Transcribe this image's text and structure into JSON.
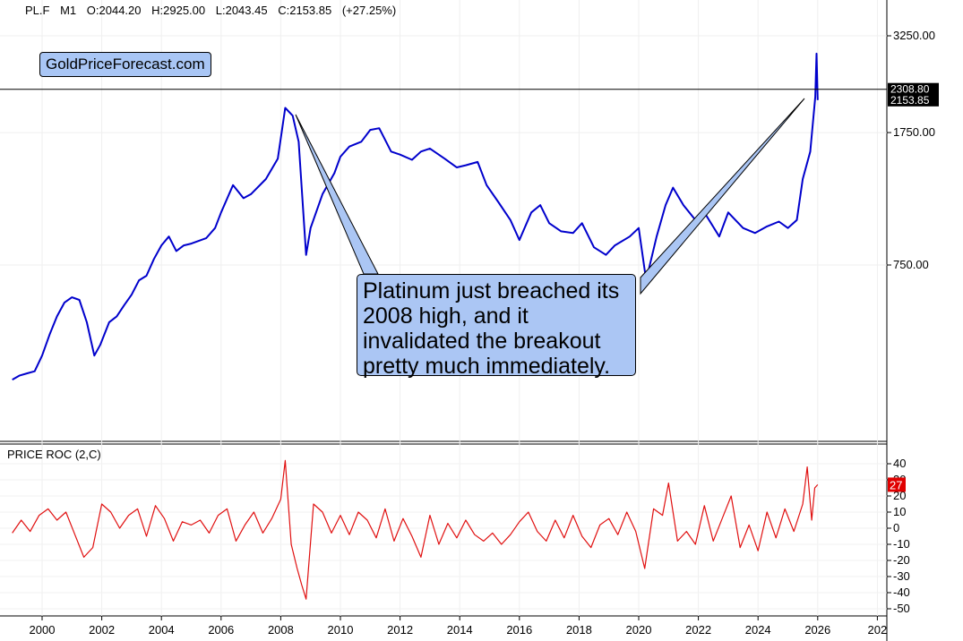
{
  "header": {
    "symbol": "PL.F",
    "timeframe": "M1",
    "open": "O:2044.20",
    "high": "H:2925.00",
    "low": "L:2043.45",
    "close": "C:2153.85",
    "change": "(+27.25%)"
  },
  "brand": "GoldPriceForecast.com",
  "annotation": "Platinum just breached its 2008 high, and it invalidated the breakout pretty much immediately.",
  "colors": {
    "price": "#0000cc",
    "roc": "#e01010",
    "callout": "#abc6f4",
    "badge_roc": "#e00000"
  },
  "chart_data": [
    {
      "type": "line",
      "x_ticks": [
        "2000",
        "2002",
        "2004",
        "2006",
        "2008",
        "2010",
        "2012",
        "2014",
        "2016",
        "2018",
        "2020",
        "2022",
        "2024",
        "2026",
        "202"
      ],
      "y_ticks": [
        "3250.00",
        "1750.00",
        "750.00"
      ],
      "y_scale": "log",
      "reference_line": {
        "value": 2308.8,
        "label": "2308.80"
      },
      "last_value_label": "2153.85",
      "series": [
        {
          "values": [
            [
              1999.0,
              360
            ],
            [
              1999.25,
              370
            ],
            [
              1999.5,
              375
            ],
            [
              1999.75,
              380
            ],
            [
              2000.0,
              420
            ],
            [
              2000.25,
              480
            ],
            [
              2000.5,
              540
            ],
            [
              2000.75,
              590
            ],
            [
              2001.0,
              610
            ],
            [
              2001.25,
              600
            ],
            [
              2001.5,
              520
            ],
            [
              2001.75,
              420
            ],
            [
              2001.95,
              450
            ],
            [
              2002.25,
              520
            ],
            [
              2002.5,
              540
            ],
            [
              2002.75,
              580
            ],
            [
              2003.0,
              620
            ],
            [
              2003.25,
              680
            ],
            [
              2003.5,
              700
            ],
            [
              2003.75,
              780
            ],
            [
              2004.0,
              850
            ],
            [
              2004.25,
              900
            ],
            [
              2004.5,
              820
            ],
            [
              2004.75,
              850
            ],
            [
              2005.0,
              860
            ],
            [
              2005.5,
              890
            ],
            [
              2005.8,
              950
            ],
            [
              2006.0,
              1050
            ],
            [
              2006.4,
              1250
            ],
            [
              2006.75,
              1150
            ],
            [
              2007.0,
              1180
            ],
            [
              2007.5,
              1300
            ],
            [
              2007.9,
              1480
            ],
            [
              2008.15,
              2050
            ],
            [
              2008.4,
              1950
            ],
            [
              2008.6,
              1650
            ],
            [
              2008.85,
              800
            ],
            [
              2009.0,
              950
            ],
            [
              2009.4,
              1180
            ],
            [
              2009.8,
              1350
            ],
            [
              2010.0,
              1500
            ],
            [
              2010.3,
              1600
            ],
            [
              2010.7,
              1650
            ],
            [
              2011.0,
              1780
            ],
            [
              2011.3,
              1800
            ],
            [
              2011.7,
              1550
            ],
            [
              2012.0,
              1520
            ],
            [
              2012.4,
              1470
            ],
            [
              2012.7,
              1550
            ],
            [
              2013.0,
              1580
            ],
            [
              2013.5,
              1480
            ],
            [
              2013.9,
              1400
            ],
            [
              2014.2,
              1420
            ],
            [
              2014.6,
              1450
            ],
            [
              2014.9,
              1250
            ],
            [
              2015.3,
              1120
            ],
            [
              2015.7,
              1000
            ],
            [
              2016.0,
              880
            ],
            [
              2016.4,
              1050
            ],
            [
              2016.7,
              1100
            ],
            [
              2017.0,
              980
            ],
            [
              2017.4,
              930
            ],
            [
              2017.8,
              920
            ],
            [
              2018.1,
              980
            ],
            [
              2018.5,
              840
            ],
            [
              2018.9,
              800
            ],
            [
              2019.2,
              850
            ],
            [
              2019.7,
              900
            ],
            [
              2020.0,
              950
            ],
            [
              2020.25,
              680
            ],
            [
              2020.6,
              900
            ],
            [
              2020.9,
              1100
            ],
            [
              2021.15,
              1230
            ],
            [
              2021.5,
              1100
            ],
            [
              2021.9,
              1000
            ],
            [
              2022.2,
              1050
            ],
            [
              2022.7,
              900
            ],
            [
              2023.0,
              1050
            ],
            [
              2023.5,
              950
            ],
            [
              2023.9,
              920
            ],
            [
              2024.3,
              960
            ],
            [
              2024.7,
              990
            ],
            [
              2025.0,
              950
            ],
            [
              2025.3,
              1000
            ],
            [
              2025.5,
              1300
            ],
            [
              2025.75,
              1550
            ],
            [
              2025.92,
              2200
            ],
            [
              2025.96,
              2900
            ],
            [
              2026.0,
              2153.85
            ]
          ]
        }
      ]
    },
    {
      "type": "line",
      "title": "PRICE ROC (2,C)",
      "y_ticks": [
        "40",
        "30",
        "20",
        "10",
        "0",
        "-10",
        "-20",
        "-30",
        "-40",
        "-50"
      ],
      "last_value_label": "27",
      "series": [
        {
          "values": [
            [
              1999.0,
              -3
            ],
            [
              1999.3,
              5
            ],
            [
              1999.6,
              -2
            ],
            [
              1999.9,
              8
            ],
            [
              2000.2,
              12
            ],
            [
              2000.5,
              5
            ],
            [
              2000.8,
              10
            ],
            [
              2001.1,
              -4
            ],
            [
              2001.4,
              -18
            ],
            [
              2001.7,
              -12
            ],
            [
              2002.0,
              15
            ],
            [
              2002.3,
              10
            ],
            [
              2002.6,
              0
            ],
            [
              2002.9,
              8
            ],
            [
              2003.2,
              12
            ],
            [
              2003.5,
              -5
            ],
            [
              2003.8,
              14
            ],
            [
              2004.1,
              6
            ],
            [
              2004.4,
              -8
            ],
            [
              2004.7,
              4
            ],
            [
              2005.0,
              2
            ],
            [
              2005.3,
              5
            ],
            [
              2005.6,
              -3
            ],
            [
              2005.9,
              8
            ],
            [
              2006.2,
              12
            ],
            [
              2006.5,
              -8
            ],
            [
              2006.8,
              2
            ],
            [
              2007.1,
              10
            ],
            [
              2007.4,
              -3
            ],
            [
              2007.7,
              6
            ],
            [
              2008.0,
              18
            ],
            [
              2008.15,
              42
            ],
            [
              2008.35,
              -10
            ],
            [
              2008.55,
              -25
            ],
            [
              2008.7,
              -35
            ],
            [
              2008.85,
              -44
            ],
            [
              2009.1,
              15
            ],
            [
              2009.4,
              10
            ],
            [
              2009.7,
              -3
            ],
            [
              2010.0,
              8
            ],
            [
              2010.3,
              -4
            ],
            [
              2010.6,
              10
            ],
            [
              2010.9,
              5
            ],
            [
              2011.2,
              -6
            ],
            [
              2011.5,
              12
            ],
            [
              2011.8,
              -8
            ],
            [
              2012.1,
              6
            ],
            [
              2012.4,
              -5
            ],
            [
              2012.7,
              -18
            ],
            [
              2013.0,
              8
            ],
            [
              2013.3,
              -10
            ],
            [
              2013.6,
              3
            ],
            [
              2013.9,
              -6
            ],
            [
              2014.2,
              5
            ],
            [
              2014.5,
              -4
            ],
            [
              2014.8,
              -8
            ],
            [
              2015.1,
              -3
            ],
            [
              2015.4,
              -10
            ],
            [
              2015.7,
              -4
            ],
            [
              2016.0,
              4
            ],
            [
              2016.3,
              10
            ],
            [
              2016.6,
              -2
            ],
            [
              2016.9,
              -8
            ],
            [
              2017.2,
              5
            ],
            [
              2017.5,
              -6
            ],
            [
              2017.8,
              8
            ],
            [
              2018.1,
              -5
            ],
            [
              2018.4,
              -12
            ],
            [
              2018.7,
              2
            ],
            [
              2019.0,
              6
            ],
            [
              2019.3,
              -4
            ],
            [
              2019.6,
              10
            ],
            [
              2019.9,
              -2
            ],
            [
              2020.2,
              -25
            ],
            [
              2020.5,
              12
            ],
            [
              2020.8,
              8
            ],
            [
              2021.0,
              28
            ],
            [
              2021.3,
              -8
            ],
            [
              2021.6,
              -2
            ],
            [
              2021.9,
              -10
            ],
            [
              2022.2,
              14
            ],
            [
              2022.5,
              -8
            ],
            [
              2022.8,
              6
            ],
            [
              2023.1,
              20
            ],
            [
              2023.4,
              -12
            ],
            [
              2023.7,
              2
            ],
            [
              2024.0,
              -14
            ],
            [
              2024.3,
              10
            ],
            [
              2024.6,
              -6
            ],
            [
              2024.9,
              12
            ],
            [
              2025.2,
              -2
            ],
            [
              2025.5,
              15
            ],
            [
              2025.65,
              38
            ],
            [
              2025.8,
              5
            ],
            [
              2025.9,
              25
            ],
            [
              2026.0,
              27
            ]
          ]
        }
      ]
    }
  ]
}
